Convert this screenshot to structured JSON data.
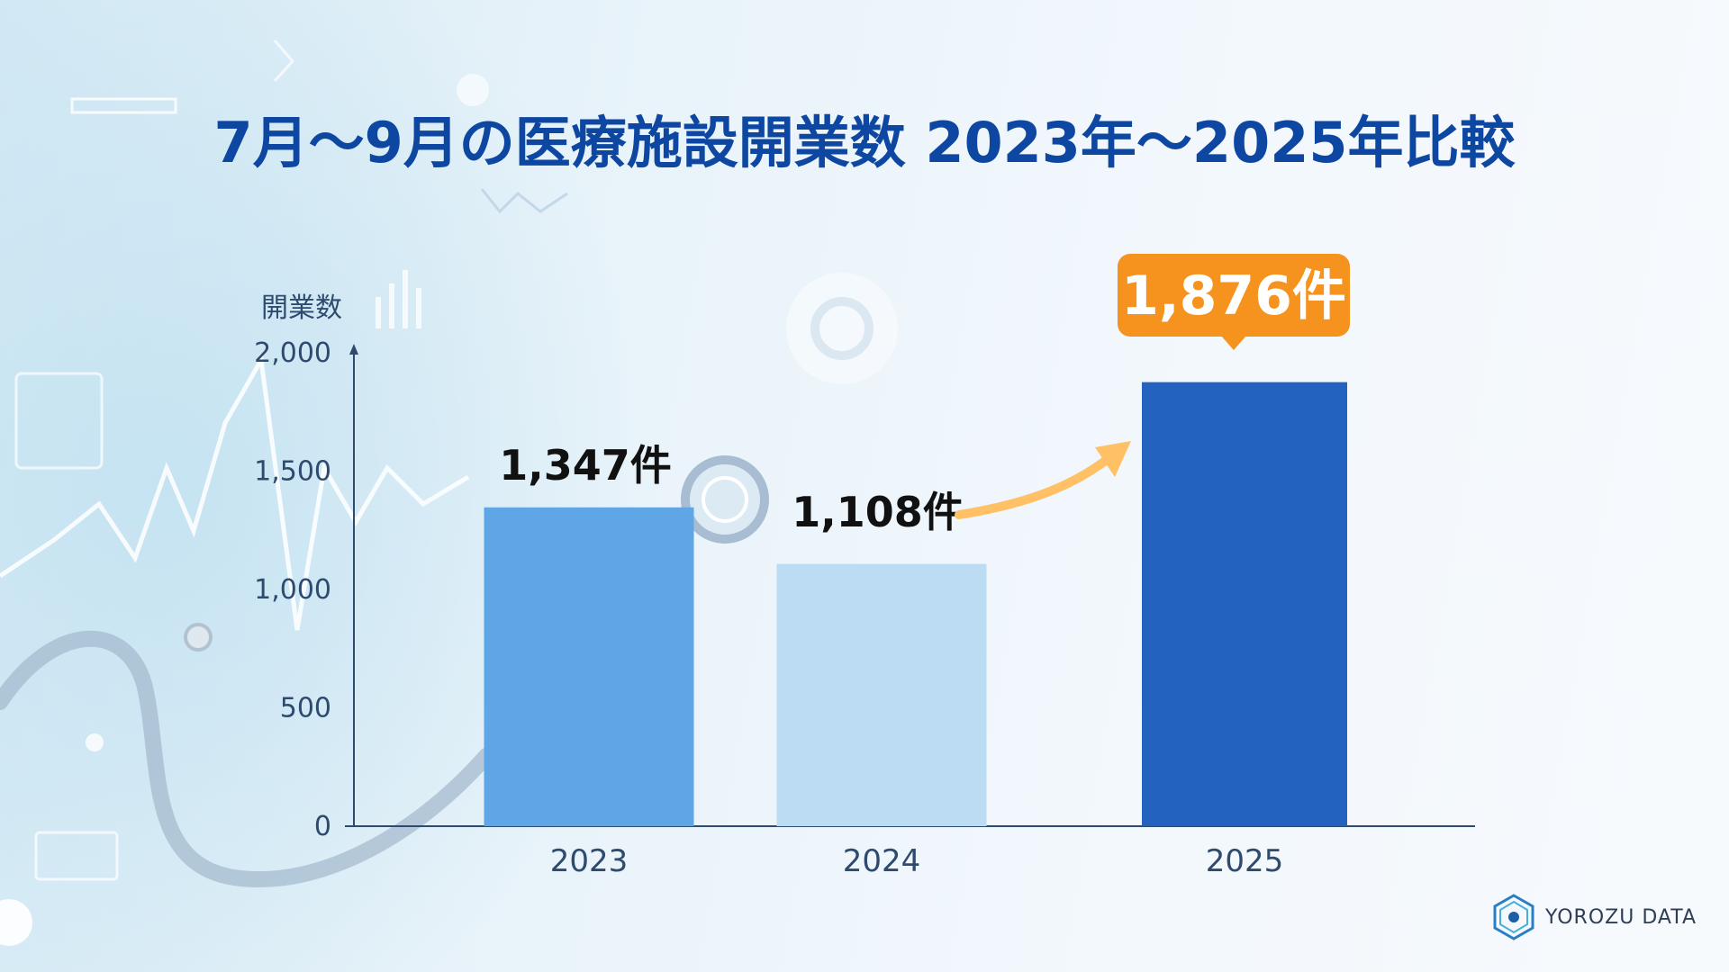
{
  "title": "7月〜9月の医療施設開業数 2023年〜2025年比較",
  "brand": {
    "name": "YOROZU DATA",
    "icon": "hexagon-logo-icon"
  },
  "colors": {
    "title": "#0d47a1",
    "axis": "#2e4a6e",
    "bar_2023": "#5ea6e6",
    "bar_2024": "#bcdcf4",
    "bar_2025": "#2462c0",
    "callout": "#f6921e",
    "arrow": "#ffc066"
  },
  "chart_data": {
    "type": "bar",
    "ylabel": "開業数",
    "xlabel": "",
    "ylim": [
      0,
      2000
    ],
    "yticks": [
      0,
      500,
      1000,
      1500,
      2000
    ],
    "ytick_labels": [
      "0",
      "500",
      "1,000",
      "1,500",
      "2,000"
    ],
    "categories": [
      "2023",
      "2024",
      "2025"
    ],
    "values": [
      1347,
      1108,
      1876
    ],
    "data_labels": [
      "1,347件",
      "1,108件",
      "1,876件"
    ],
    "highlight": "2025",
    "grid": false,
    "legend": "none"
  }
}
